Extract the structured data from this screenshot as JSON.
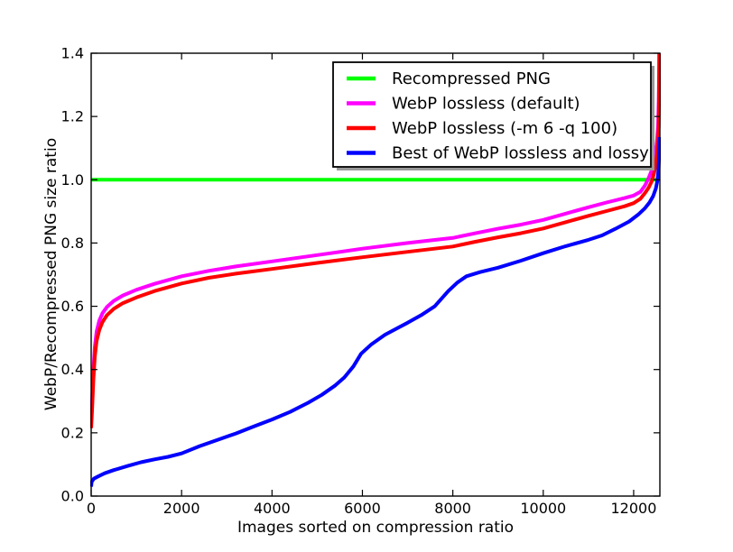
{
  "chart_data": {
    "type": "line",
    "title": "",
    "xlabel": "Images sorted on compression ratio",
    "ylabel": "WebP/Recompressed PNG size ratio",
    "xlim": [
      0,
      12580
    ],
    "ylim": [
      0,
      1.4
    ],
    "grid": false,
    "background": "#ffffff",
    "axes_color": "#000000",
    "xticks": {
      "values": [
        0,
        2000,
        4000,
        6000,
        8000,
        10000,
        12000
      ],
      "labels": [
        "0",
        "2000",
        "4000",
        "6000",
        "8000",
        "10000",
        "12000"
      ]
    },
    "yticks": {
      "values": [
        0.0,
        0.2,
        0.4,
        0.6,
        0.8,
        1.0,
        1.2,
        1.4
      ],
      "labels": [
        "0.0",
        "0.2",
        "0.4",
        "0.6",
        "0.8",
        "1.0",
        "1.2",
        "1.4"
      ]
    },
    "legend": {
      "position": "upper right",
      "shadow": true,
      "shadow_color": "#999999",
      "border_color": "#000000",
      "fill_color": "#ffffff"
    },
    "series": [
      {
        "name": "Recompressed PNG",
        "color": "#00ff00",
        "points": [
          [
            0,
            1.0
          ],
          [
            12580,
            1.0
          ]
        ]
      },
      {
        "name": "WebP lossless (default)",
        "color": "#ff00ff",
        "points": [
          [
            0,
            0.24
          ],
          [
            20,
            0.3
          ],
          [
            50,
            0.4
          ],
          [
            80,
            0.47
          ],
          [
            120,
            0.52
          ],
          [
            180,
            0.555
          ],
          [
            250,
            0.578
          ],
          [
            350,
            0.598
          ],
          [
            500,
            0.617
          ],
          [
            700,
            0.634
          ],
          [
            1000,
            0.652
          ],
          [
            1400,
            0.671
          ],
          [
            2000,
            0.695
          ],
          [
            2600,
            0.712
          ],
          [
            3200,
            0.726
          ],
          [
            4000,
            0.742
          ],
          [
            5000,
            0.762
          ],
          [
            6000,
            0.782
          ],
          [
            7000,
            0.8
          ],
          [
            8000,
            0.816
          ],
          [
            8500,
            0.831
          ],
          [
            9000,
            0.845
          ],
          [
            9500,
            0.858
          ],
          [
            10000,
            0.873
          ],
          [
            10500,
            0.893
          ],
          [
            11000,
            0.913
          ],
          [
            11400,
            0.928
          ],
          [
            11800,
            0.942
          ],
          [
            12000,
            0.95
          ],
          [
            12150,
            0.962
          ],
          [
            12250,
            0.982
          ],
          [
            12330,
            1.005
          ],
          [
            12400,
            1.03
          ],
          [
            12450,
            1.06
          ],
          [
            12490,
            1.09
          ],
          [
            12520,
            1.13
          ],
          [
            12540,
            1.17
          ],
          [
            12555,
            1.25
          ],
          [
            12562,
            1.33
          ],
          [
            12566,
            1.4
          ]
        ]
      },
      {
        "name": "WebP lossless (-m 6 -q 100)",
        "color": "#ff0000",
        "points": [
          [
            0,
            0.215
          ],
          [
            20,
            0.27
          ],
          [
            50,
            0.37
          ],
          [
            80,
            0.44
          ],
          [
            120,
            0.49
          ],
          [
            180,
            0.525
          ],
          [
            250,
            0.55
          ],
          [
            350,
            0.572
          ],
          [
            500,
            0.592
          ],
          [
            700,
            0.61
          ],
          [
            1000,
            0.628
          ],
          [
            1400,
            0.648
          ],
          [
            2000,
            0.672
          ],
          [
            2600,
            0.69
          ],
          [
            3200,
            0.703
          ],
          [
            4000,
            0.718
          ],
          [
            5000,
            0.737
          ],
          [
            6000,
            0.755
          ],
          [
            7000,
            0.772
          ],
          [
            8000,
            0.789
          ],
          [
            8500,
            0.804
          ],
          [
            9000,
            0.818
          ],
          [
            9500,
            0.831
          ],
          [
            10000,
            0.846
          ],
          [
            10500,
            0.866
          ],
          [
            11000,
            0.886
          ],
          [
            11400,
            0.901
          ],
          [
            11800,
            0.916
          ],
          [
            12000,
            0.926
          ],
          [
            12150,
            0.94
          ],
          [
            12250,
            0.958
          ],
          [
            12330,
            0.975
          ],
          [
            12400,
            0.995
          ],
          [
            12450,
            1.02
          ],
          [
            12490,
            1.05
          ],
          [
            12520,
            1.085
          ],
          [
            12540,
            1.12
          ],
          [
            12555,
            1.17
          ],
          [
            12563,
            1.26
          ],
          [
            12569,
            1.4
          ]
        ]
      },
      {
        "name": "Best of WebP lossless and lossy",
        "color": "#0000ff",
        "points": [
          [
            0,
            0.03
          ],
          [
            10,
            0.045
          ],
          [
            60,
            0.055
          ],
          [
            150,
            0.062
          ],
          [
            300,
            0.072
          ],
          [
            500,
            0.082
          ],
          [
            800,
            0.095
          ],
          [
            1100,
            0.107
          ],
          [
            1400,
            0.116
          ],
          [
            1700,
            0.124
          ],
          [
            2000,
            0.135
          ],
          [
            2400,
            0.158
          ],
          [
            2800,
            0.178
          ],
          [
            3200,
            0.198
          ],
          [
            3600,
            0.22
          ],
          [
            4000,
            0.242
          ],
          [
            4400,
            0.266
          ],
          [
            4800,
            0.295
          ],
          [
            5100,
            0.32
          ],
          [
            5400,
            0.35
          ],
          [
            5600,
            0.375
          ],
          [
            5800,
            0.41
          ],
          [
            5970,
            0.45
          ],
          [
            6200,
            0.48
          ],
          [
            6500,
            0.51
          ],
          [
            6800,
            0.533
          ],
          [
            7000,
            0.548
          ],
          [
            7300,
            0.572
          ],
          [
            7600,
            0.6
          ],
          [
            7900,
            0.648
          ],
          [
            8100,
            0.675
          ],
          [
            8300,
            0.695
          ],
          [
            8600,
            0.708
          ],
          [
            9000,
            0.722
          ],
          [
            9500,
            0.744
          ],
          [
            10000,
            0.768
          ],
          [
            10500,
            0.79
          ],
          [
            11000,
            0.81
          ],
          [
            11300,
            0.824
          ],
          [
            11600,
            0.845
          ],
          [
            11900,
            0.868
          ],
          [
            12100,
            0.89
          ],
          [
            12250,
            0.91
          ],
          [
            12350,
            0.928
          ],
          [
            12430,
            0.948
          ],
          [
            12490,
            0.972
          ],
          [
            12520,
            0.993
          ],
          [
            12540,
            1.015
          ],
          [
            12552,
            1.04
          ],
          [
            12560,
            1.065
          ],
          [
            12566,
            1.09
          ],
          [
            12571,
            1.12
          ],
          [
            12574,
            1.135
          ]
        ]
      }
    ]
  }
}
